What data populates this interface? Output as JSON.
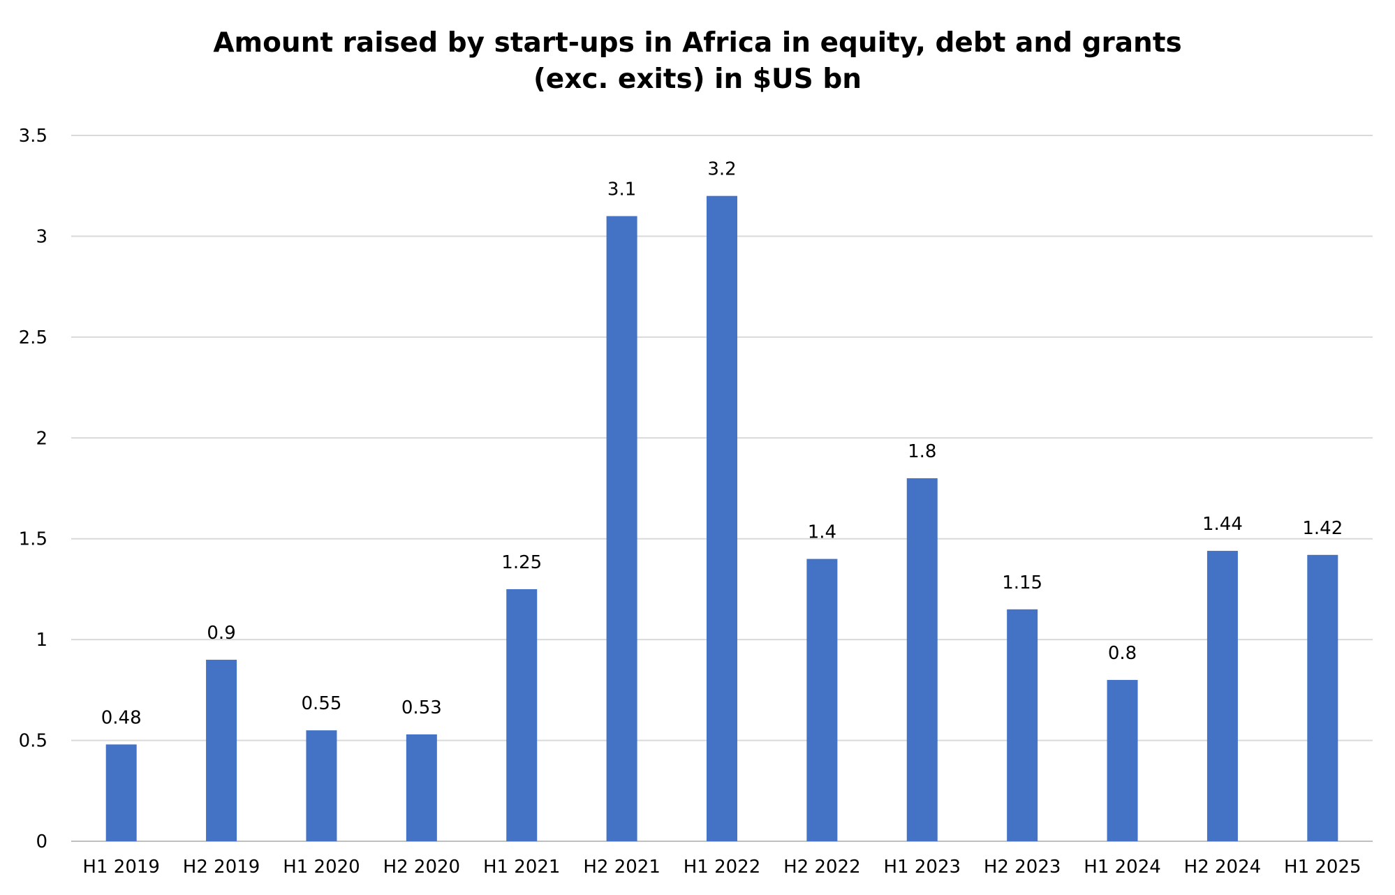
{
  "chart_data": {
    "type": "bar",
    "title_line1": "Amount raised by start-ups in Africa in equity, debt and grants",
    "title_line2": "(exc. exits) in $US bn",
    "xlabel": "",
    "ylabel": "",
    "categories": [
      "H1 2019",
      "H2 2019",
      "H1 2020",
      "H2 2020",
      "H1 2021",
      "H2 2021",
      "H1 2022",
      "H2 2022",
      "H1 2023",
      "H2 2023",
      "H1 2024",
      "H2 2024",
      "H1 2025"
    ],
    "values": [
      0.48,
      0.9,
      0.55,
      0.53,
      1.25,
      3.1,
      3.2,
      1.4,
      1.8,
      1.15,
      0.8,
      1.44,
      1.42
    ],
    "data_labels": [
      "0.48",
      "0.9",
      "0.55",
      "0.53",
      "1.25",
      "3.1",
      "3.2",
      "1.4",
      "1.8",
      "1.15",
      "0.8",
      "1.44",
      "1.42"
    ],
    "ylim": [
      0,
      3.5
    ],
    "y_ticks": [
      0,
      0.5,
      1,
      1.5,
      2,
      2.5,
      3,
      3.5
    ],
    "y_tick_labels": [
      "0",
      "0.5",
      "1",
      "1.5",
      "2",
      "2.5",
      "3",
      "3.5"
    ],
    "grid": true,
    "legend": "none",
    "colors": {
      "bar": "#4472C4",
      "grid": "#D9D9D9",
      "axis": "#BFBFBF",
      "text": "#000000"
    }
  }
}
